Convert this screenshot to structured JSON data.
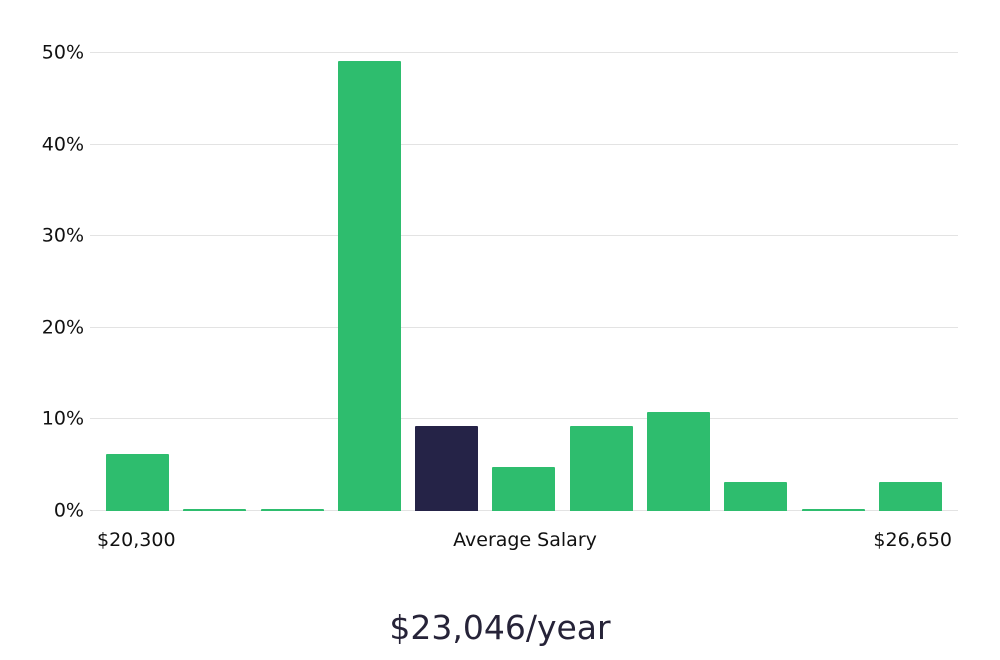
{
  "chart_data": {
    "type": "bar",
    "title": "$23,046/year",
    "values": [
      6.2,
      0.2,
      0.2,
      49.1,
      9.3,
      4.8,
      9.3,
      10.8,
      3.2,
      0.2,
      3.2
    ],
    "highlight_index": 4,
    "bar_color": "#2ebd6e",
    "highlight_color": "#252347",
    "ymax": 50,
    "y_ticks": [
      "0%",
      "10%",
      "20%",
      "30%",
      "40%",
      "50%"
    ],
    "grid": true,
    "x_labels": {
      "left": "$20,300",
      "center": "Average Salary",
      "right": "$26,650"
    }
  }
}
